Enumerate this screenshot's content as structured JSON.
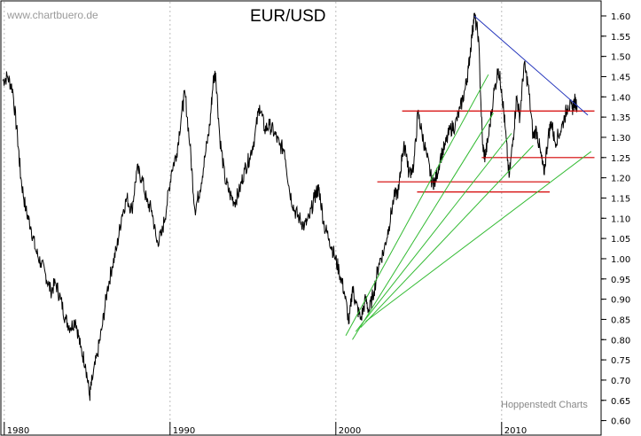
{
  "header": {
    "watermark": "www.chartbuero.de",
    "title": "EUR/USD"
  },
  "footer": {
    "credit": "Hoppenstedt Charts"
  },
  "colors": {
    "price": "#000000",
    "resistance": "#d40000",
    "trendline_down": "#2233bb",
    "fan_lines": "#33bb33",
    "grid": "#bbbbbb"
  },
  "chart_data": {
    "type": "line",
    "title": "EUR/USD",
    "xlabel": "",
    "ylabel": "",
    "xlim": [
      1979.85,
      2016.0
    ],
    "ylim": [
      0.575,
      1.635
    ],
    "x_ticks": [
      1980,
      1990,
      2000,
      2010
    ],
    "x_tick_labels": [
      "1980",
      "1990",
      "2000",
      "2010"
    ],
    "y_ticks": [
      0.6,
      0.65,
      0.7,
      0.75,
      0.8,
      0.85,
      0.9,
      0.95,
      1.0,
      1.05,
      1.1,
      1.15,
      1.2,
      1.25,
      1.3,
      1.35,
      1.4,
      1.45,
      1.5,
      1.55,
      1.6
    ],
    "y_tick_labels": [
      "0.60",
      "0.65",
      "0.70",
      "0.75",
      "0.80",
      "0.85",
      "0.90",
      "0.95",
      "1.00",
      "1.05",
      "1.10",
      "1.15",
      "1.20",
      "1.25",
      "1.30",
      "1.35",
      "1.40",
      "1.45",
      "1.50",
      "1.55",
      "1.60"
    ],
    "grid": "vertical dotted at decades",
    "series": [
      {
        "points": [
          [
            1979.9,
            1.44
          ],
          [
            1980.2,
            1.45
          ],
          [
            1980.5,
            1.42
          ],
          [
            1980.8,
            1.3
          ],
          [
            1981.0,
            1.2
          ],
          [
            1981.3,
            1.12
          ],
          [
            1981.6,
            1.08
          ],
          [
            1981.9,
            1.02
          ],
          [
            1982.2,
            0.99
          ],
          [
            1982.5,
            0.96
          ],
          [
            1982.8,
            0.92
          ],
          [
            1983.1,
            0.94
          ],
          [
            1983.4,
            0.9
          ],
          [
            1983.7,
            0.85
          ],
          [
            1984.0,
            0.83
          ],
          [
            1984.3,
            0.85
          ],
          [
            1984.6,
            0.78
          ],
          [
            1984.9,
            0.74
          ],
          [
            1985.15,
            0.66
          ],
          [
            1985.3,
            0.7
          ],
          [
            1985.6,
            0.76
          ],
          [
            1985.9,
            0.83
          ],
          [
            1986.2,
            0.92
          ],
          [
            1986.5,
            0.98
          ],
          [
            1986.8,
            1.03
          ],
          [
            1987.1,
            1.11
          ],
          [
            1987.4,
            1.15
          ],
          [
            1987.7,
            1.12
          ],
          [
            1988.0,
            1.22
          ],
          [
            1988.3,
            1.2
          ],
          [
            1988.6,
            1.14
          ],
          [
            1988.9,
            1.12
          ],
          [
            1989.2,
            1.04
          ],
          [
            1989.5,
            1.06
          ],
          [
            1989.8,
            1.13
          ],
          [
            1990.1,
            1.22
          ],
          [
            1990.4,
            1.26
          ],
          [
            1990.7,
            1.36
          ],
          [
            1990.9,
            1.41
          ],
          [
            1991.2,
            1.28
          ],
          [
            1991.5,
            1.12
          ],
          [
            1991.8,
            1.17
          ],
          [
            1992.1,
            1.25
          ],
          [
            1992.4,
            1.33
          ],
          [
            1992.6,
            1.44
          ],
          [
            1992.75,
            1.46
          ],
          [
            1993.0,
            1.3
          ],
          [
            1993.3,
            1.2
          ],
          [
            1993.6,
            1.16
          ],
          [
            1993.9,
            1.14
          ],
          [
            1994.2,
            1.17
          ],
          [
            1994.5,
            1.22
          ],
          [
            1994.8,
            1.25
          ],
          [
            1995.1,
            1.3
          ],
          [
            1995.4,
            1.38
          ],
          [
            1995.7,
            1.32
          ],
          [
            1996.0,
            1.33
          ],
          [
            1996.3,
            1.31
          ],
          [
            1996.6,
            1.28
          ],
          [
            1996.9,
            1.27
          ],
          [
            1997.2,
            1.17
          ],
          [
            1997.5,
            1.12
          ],
          [
            1997.8,
            1.1
          ],
          [
            1998.1,
            1.08
          ],
          [
            1998.4,
            1.1
          ],
          [
            1998.7,
            1.15
          ],
          [
            1998.9,
            1.17
          ],
          [
            1999.0,
            1.17
          ],
          [
            1999.3,
            1.08
          ],
          [
            1999.6,
            1.05
          ],
          [
            1999.9,
            1.01
          ],
          [
            2000.2,
            0.97
          ],
          [
            2000.5,
            0.92
          ],
          [
            2000.8,
            0.84
          ],
          [
            2001.0,
            0.93
          ],
          [
            2001.2,
            0.89
          ],
          [
            2001.5,
            0.85
          ],
          [
            2001.8,
            0.9
          ],
          [
            2002.0,
            0.87
          ],
          [
            2002.3,
            0.92
          ],
          [
            2002.6,
            0.99
          ],
          [
            2002.9,
            1.02
          ],
          [
            2003.2,
            1.08
          ],
          [
            2003.5,
            1.15
          ],
          [
            2003.8,
            1.17
          ],
          [
            2004.0,
            1.26
          ],
          [
            2004.2,
            1.28
          ],
          [
            2004.4,
            1.21
          ],
          [
            2004.7,
            1.23
          ],
          [
            2004.95,
            1.36
          ],
          [
            2005.2,
            1.31
          ],
          [
            2005.5,
            1.25
          ],
          [
            2005.8,
            1.19
          ],
          [
            2006.0,
            1.19
          ],
          [
            2006.3,
            1.25
          ],
          [
            2006.6,
            1.28
          ],
          [
            2006.9,
            1.32
          ],
          [
            2007.2,
            1.33
          ],
          [
            2007.5,
            1.37
          ],
          [
            2007.8,
            1.42
          ],
          [
            2008.0,
            1.47
          ],
          [
            2008.2,
            1.55
          ],
          [
            2008.35,
            1.6
          ],
          [
            2008.6,
            1.55
          ],
          [
            2008.85,
            1.28
          ],
          [
            2009.0,
            1.25
          ],
          [
            2009.2,
            1.3
          ],
          [
            2009.5,
            1.4
          ],
          [
            2009.8,
            1.47
          ],
          [
            2010.0,
            1.42
          ],
          [
            2010.2,
            1.33
          ],
          [
            2010.45,
            1.2
          ],
          [
            2010.7,
            1.3
          ],
          [
            2010.9,
            1.4
          ],
          [
            2011.1,
            1.35
          ],
          [
            2011.35,
            1.48
          ],
          [
            2011.6,
            1.43
          ],
          [
            2011.9,
            1.3
          ],
          [
            2012.1,
            1.32
          ],
          [
            2012.35,
            1.26
          ],
          [
            2012.55,
            1.21
          ],
          [
            2012.8,
            1.3
          ],
          [
            2013.0,
            1.34
          ],
          [
            2013.2,
            1.29
          ],
          [
            2013.5,
            1.31
          ],
          [
            2013.8,
            1.35
          ],
          [
            2014.0,
            1.38
          ],
          [
            2014.25,
            1.37
          ],
          [
            2014.4,
            1.39
          ],
          [
            2014.55,
            1.38
          ]
        ]
      }
    ],
    "lines": {
      "resistance": [
        {
          "x0": 2004.0,
          "x1": 2015.6,
          "y": 1.365
        },
        {
          "x0": 2008.8,
          "x1": 2015.6,
          "y": 1.25
        },
        {
          "x0": 2002.5,
          "x1": 2012.9,
          "y": 1.19
        },
        {
          "x0": 2004.9,
          "x1": 2012.9,
          "y": 1.165
        }
      ],
      "downtrend": {
        "x0": 2008.35,
        "y0": 1.6,
        "x1": 2015.2,
        "y1": 1.355
      },
      "fan": [
        {
          "x0": 2000.6,
          "y0": 0.81,
          "x1": 2009.2,
          "y1": 1.455
        },
        {
          "x0": 2001.0,
          "y0": 0.8,
          "x1": 2009.5,
          "y1": 1.36
        },
        {
          "x0": 2001.2,
          "y0": 0.82,
          "x1": 2010.6,
          "y1": 1.31
        },
        {
          "x0": 2001.5,
          "y0": 0.83,
          "x1": 2011.9,
          "y1": 1.28
        },
        {
          "x0": 2001.8,
          "y0": 0.845,
          "x1": 2015.4,
          "y1": 1.265
        }
      ]
    }
  }
}
